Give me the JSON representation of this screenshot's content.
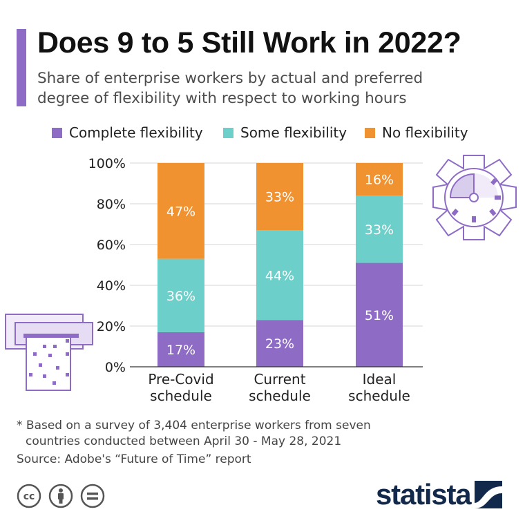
{
  "header": {
    "title": "Does 9 to 5 Still Work in 2022?",
    "subtitle_line1": "Share of enterprise workers by actual and preferred",
    "subtitle_line2": "degree of flexibility with respect to working hours"
  },
  "colors": {
    "accent": "#8e6cc6",
    "complete": "#8e6cc6",
    "some": "#6ccfc9",
    "none": "#f0922f",
    "text_on_bar": "#ffffff",
    "axis_text": "#222222",
    "brand": "#13294b"
  },
  "legend": [
    {
      "label": "Complete flexibility",
      "color": "#8e6cc6"
    },
    {
      "label": "Some flexibility",
      "color": "#6ccfc9"
    },
    {
      "label": "No flexibility",
      "color": "#f0922f"
    }
  ],
  "chart_data": {
    "type": "bar",
    "stacked": true,
    "categories": [
      [
        "Pre-Covid",
        "schedule"
      ],
      [
        "Current",
        "schedule"
      ],
      [
        "Ideal",
        "schedule"
      ]
    ],
    "series": [
      {
        "name": "Complete flexibility",
        "values": [
          17,
          23,
          51
        ],
        "color": "#8e6cc6"
      },
      {
        "name": "Some flexibility",
        "values": [
          36,
          44,
          33
        ],
        "color": "#6ccfc9"
      },
      {
        "name": "No flexibility",
        "values": [
          47,
          33,
          16
        ],
        "color": "#f0922f"
      }
    ],
    "ylim": [
      0,
      100
    ],
    "yticks": [
      0,
      20,
      40,
      60,
      80,
      100
    ],
    "ytick_labels": [
      "0%",
      "20%",
      "40%",
      "60%",
      "80%",
      "100%"
    ],
    "value_suffix": "%",
    "grid": true,
    "legend_position": "top"
  },
  "footer": {
    "footnote_line1": "* Based on a survey of 3,404 enterprise workers from seven",
    "footnote_line2": "countries conducted between April 30 - May 28, 2021",
    "source": "Source: Adobe's “Future of Time” report",
    "brand": "statista",
    "license_icons": [
      "cc-icon",
      "attribution-icon",
      "no-derivatives-icon"
    ]
  }
}
